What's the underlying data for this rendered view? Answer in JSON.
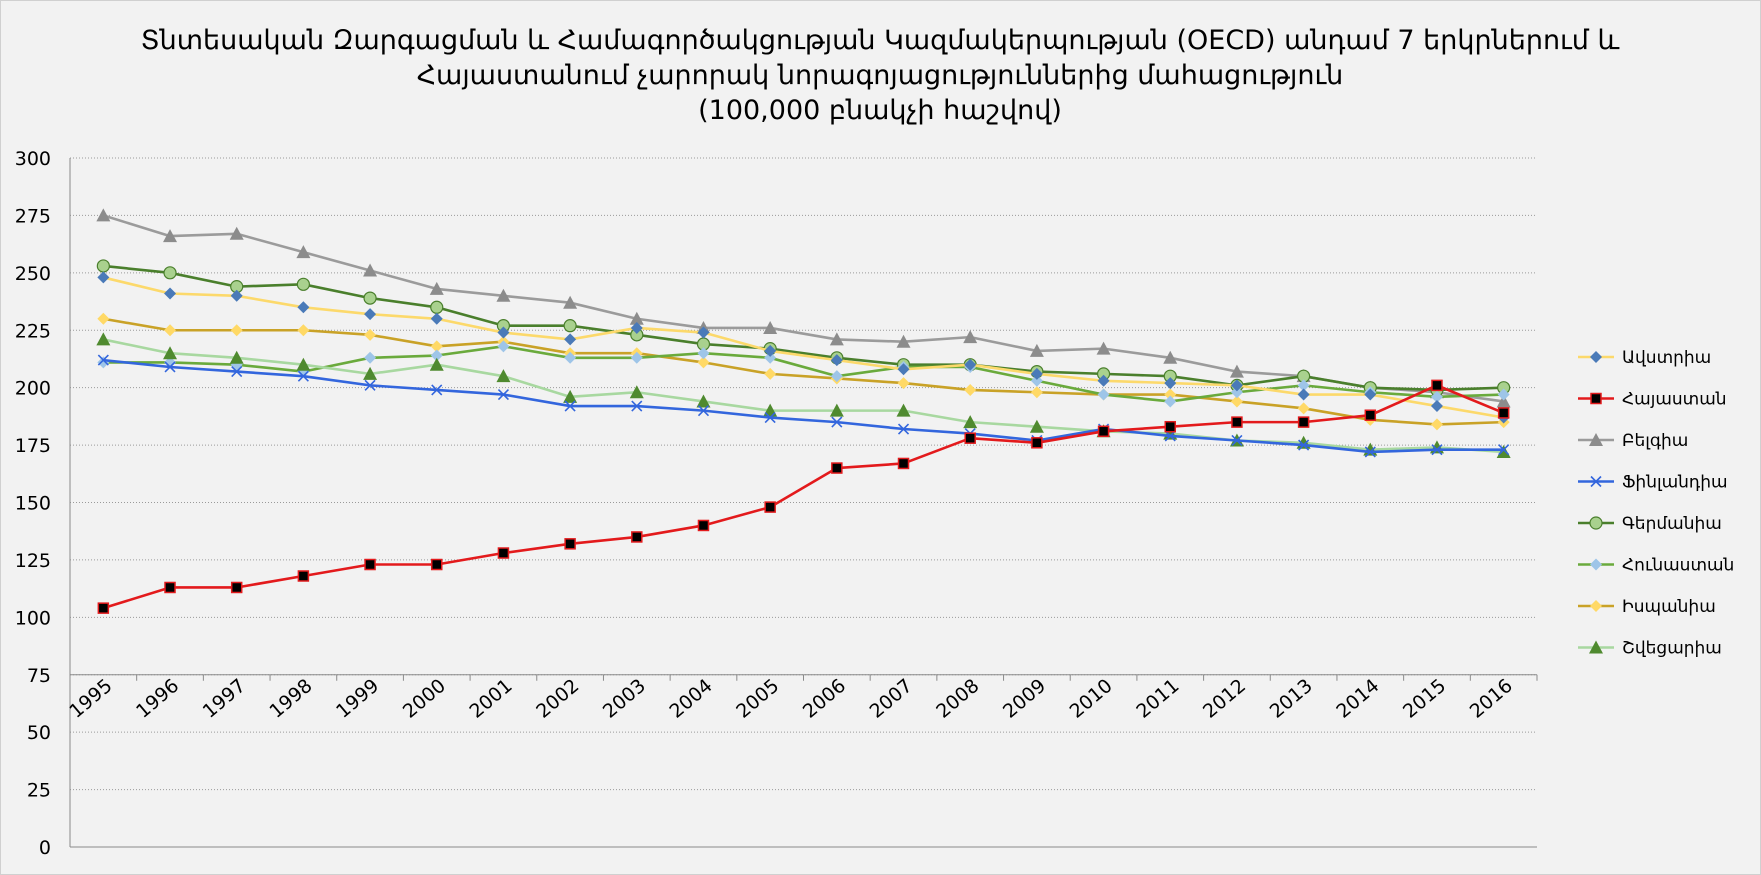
{
  "chart_data": {
    "type": "line",
    "title": [
      "Տնտեսական Զարգացման և Համագործակցության Կազմակերպության (OECD) անդամ 7 երկրներում և",
      "Հայաստանում չարորակ նորագոյացություններից մահացություն",
      "(100,000 բնակչի հաշվով)"
    ],
    "xlabel": "",
    "ylabel": "",
    "ylim": [
      0,
      300
    ],
    "yticks": [
      0,
      25,
      50,
      75,
      100,
      125,
      150,
      175,
      200,
      225,
      250,
      275,
      300
    ],
    "x_axis_crosses_at": 75,
    "grid": true,
    "legend_position": "right",
    "categories": [
      "1995",
      "1996",
      "1997",
      "1998",
      "1999",
      "2000",
      "2001",
      "2002",
      "2003",
      "2004",
      "2005",
      "2006",
      "2007",
      "2008",
      "2009",
      "2010",
      "2011",
      "2012",
      "2013",
      "2014",
      "2015",
      "2016"
    ],
    "series": [
      {
        "name": "Ավստրիա",
        "color": "#fcd96b",
        "marker": "diamond",
        "marker_color": "#4a7ab8",
        "values": [
          248,
          241,
          240,
          235,
          232,
          230,
          224,
          221,
          226,
          224,
          216,
          212,
          208,
          210,
          206,
          203,
          202,
          201,
          197,
          197,
          192,
          187
        ]
      },
      {
        "name": "Հայաստան",
        "color": "#e31a1c",
        "marker": "square",
        "marker_color": "#000000",
        "values": [
          104,
          113,
          113,
          118,
          123,
          123,
          128,
          132,
          135,
          140,
          148,
          165,
          167,
          178,
          176,
          181,
          183,
          185,
          185,
          188,
          201,
          189
        ]
      },
      {
        "name": "Բելգիա",
        "color": "#9b9b9b",
        "marker": "triangle",
        "marker_color": "#8c8c8c",
        "values": [
          275,
          266,
          267,
          259,
          251,
          243,
          240,
          237,
          230,
          226,
          226,
          221,
          220,
          222,
          216,
          217,
          213,
          207,
          205,
          200,
          198,
          194
        ]
      },
      {
        "name": "Ֆինլանդիա",
        "color": "#3366dd",
        "marker": "x",
        "marker_color": "#3366dd",
        "values": [
          212,
          209,
          207,
          205,
          201,
          199,
          197,
          192,
          192,
          190,
          187,
          185,
          182,
          180,
          177,
          182,
          179,
          177,
          175,
          172,
          173,
          173
        ]
      },
      {
        "name": "Գերմանիա",
        "color": "#4a7f2c",
        "marker": "circle",
        "marker_color": "#a9d18e",
        "values": [
          253,
          250,
          244,
          245,
          239,
          235,
          227,
          227,
          223,
          219,
          217,
          213,
          210,
          210,
          207,
          206,
          205,
          201,
          205,
          200,
          199,
          200
        ]
      },
      {
        "name": "Հունաստան",
        "color": "#6aaa3c",
        "marker": "diamond",
        "marker_color": "#9ec5e8",
        "values": [
          211,
          211,
          210,
          207,
          213,
          214,
          218,
          213,
          213,
          215,
          213,
          205,
          209,
          209,
          203,
          197,
          194,
          198,
          201,
          198,
          196,
          197
        ]
      },
      {
        "name": "Իսպանիա",
        "color": "#c9a227",
        "marker": "diamond",
        "marker_color": "#ffd966",
        "values": [
          230,
          225,
          225,
          225,
          223,
          218,
          220,
          215,
          215,
          211,
          206,
          204,
          202,
          199,
          198,
          197,
          197,
          194,
          191,
          186,
          184,
          185
        ]
      },
      {
        "name": "Շվեցարիա",
        "color": "#a8d8a0",
        "marker": "triangle",
        "marker_color": "#4f8a2f",
        "values": [
          221,
          215,
          213,
          210,
          206,
          210,
          205,
          196,
          198,
          194,
          190,
          190,
          190,
          185,
          183,
          181,
          180,
          177,
          176,
          173,
          174,
          172
        ]
      }
    ]
  }
}
